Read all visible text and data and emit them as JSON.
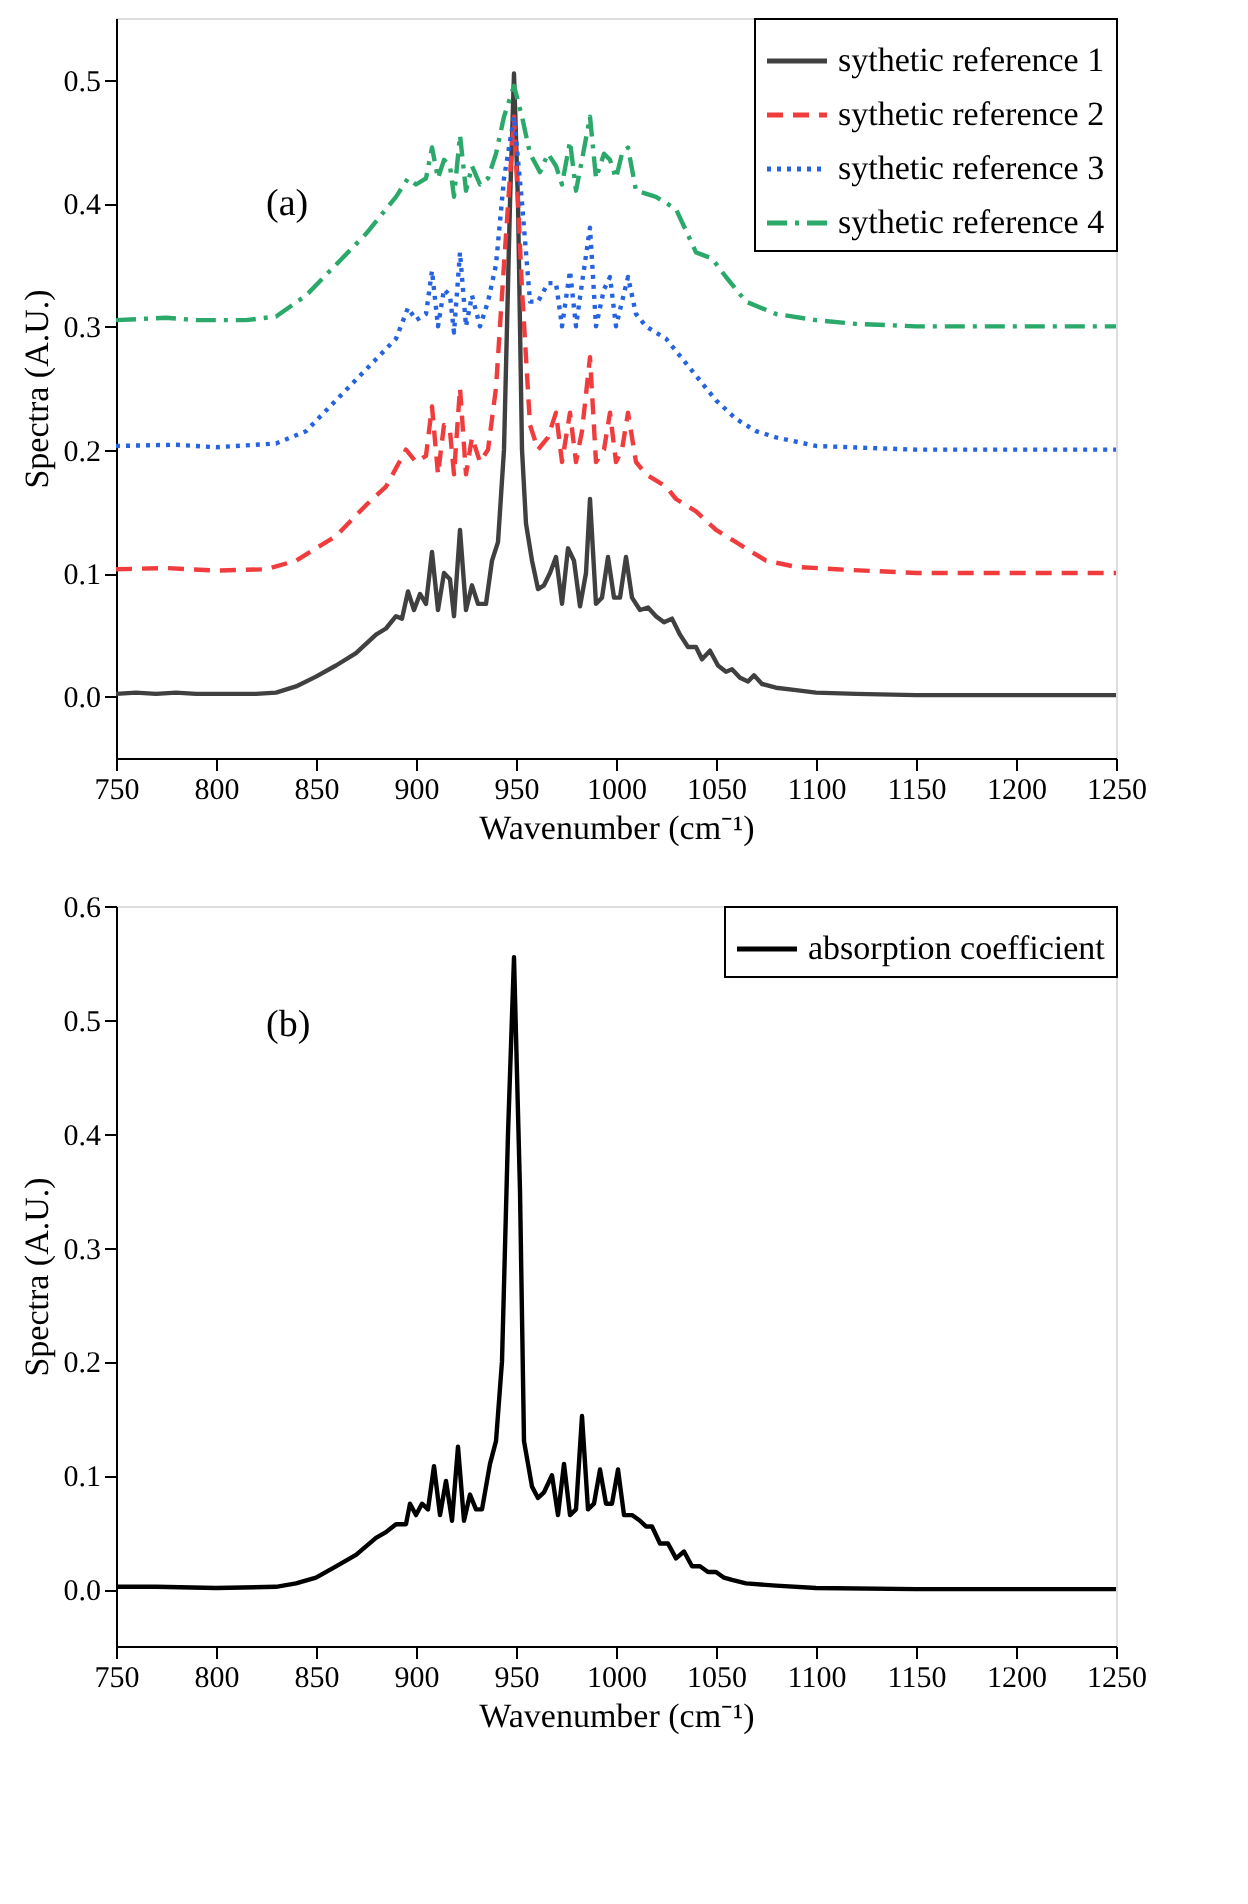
{
  "chart_data": [
    {
      "type": "line",
      "xlabel": "Wavenumber (cm⁻¹)",
      "ylabel": "Spectra (A.U.)",
      "annotations": [
        "(a)"
      ],
      "xlim": [
        750,
        1250
      ],
      "xticks": [
        750,
        800,
        850,
        900,
        950,
        1000,
        1050,
        1100,
        1150,
        1200,
        1250
      ],
      "ylim": [
        -0.05,
        0.55
      ],
      "yticks": [
        {
          "value": 0,
          "label": "0.0"
        },
        {
          "value": 0.1,
          "label": "0.1"
        },
        {
          "value": 0.2,
          "label": "0.2"
        },
        {
          "value": 0.3,
          "label": "0.3"
        },
        {
          "value": 0.4,
          "label": "0.4"
        },
        {
          "value": 0.5,
          "label": "0.5"
        }
      ],
      "grid": false,
      "legend": "top right",
      "marker": "none",
      "series": [
        {
          "name": "sythetic reference 1",
          "color": "#404040",
          "line_style": "solid",
          "x": [
            750,
            760,
            770,
            780,
            790,
            800,
            820,
            830,
            840,
            850,
            860,
            870,
            880,
            885,
            890,
            893,
            896,
            899,
            902,
            905,
            908,
            911,
            914,
            917,
            919,
            922,
            925,
            928,
            931,
            935,
            938,
            941,
            944,
            947,
            949,
            951,
            953,
            955,
            958,
            961,
            964,
            967,
            970,
            973,
            976,
            979,
            982,
            985,
            987,
            990,
            993,
            996,
            999,
            1002,
            1005,
            1008,
            1012,
            1016,
            1020,
            1024,
            1028,
            1032,
            1036,
            1040,
            1043,
            1047,
            1051,
            1055,
            1058,
            1062,
            1066,
            1069,
            1073,
            1080,
            1090,
            1100,
            1120,
            1150,
            1200,
            1250
          ],
          "values": [
            0.002,
            0.003,
            0.002,
            0.003,
            0.002,
            0.002,
            0.002,
            0.003,
            0.008,
            0.016,
            0.025,
            0.035,
            0.05,
            0.055,
            0.065,
            0.063,
            0.085,
            0.07,
            0.083,
            0.075,
            0.117,
            0.07,
            0.1,
            0.095,
            0.065,
            0.135,
            0.07,
            0.09,
            0.075,
            0.075,
            0.11,
            0.125,
            0.2,
            0.4,
            0.505,
            0.4,
            0.2,
            0.14,
            0.11,
            0.087,
            0.09,
            0.1,
            0.113,
            0.075,
            0.12,
            0.11,
            0.073,
            0.1,
            0.16,
            0.075,
            0.08,
            0.113,
            0.08,
            0.08,
            0.113,
            0.08,
            0.07,
            0.072,
            0.065,
            0.06,
            0.063,
            0.05,
            0.04,
            0.04,
            0.03,
            0.037,
            0.025,
            0.02,
            0.022,
            0.015,
            0.012,
            0.017,
            0.01,
            0.007,
            0.005,
            0.003,
            0.002,
            0.001,
            0.001,
            0.001
          ]
        },
        {
          "name": "sythetic reference 2",
          "color": "#f03c3c",
          "line_style": "dashed",
          "x": [
            750,
            775,
            800,
            825,
            840,
            860,
            875,
            885,
            895,
            900,
            905,
            908,
            911,
            914,
            917,
            919,
            922,
            925,
            928,
            932,
            936,
            940,
            944,
            949,
            953,
            957,
            961,
            966,
            970,
            973,
            977,
            980,
            983,
            987,
            990,
            994,
            997,
            1000,
            1003,
            1006,
            1010,
            1015,
            1025,
            1030,
            1040,
            1050,
            1060,
            1075,
            1090,
            1110,
            1150,
            1200,
            1250
          ],
          "values": [
            0.103,
            0.104,
            0.102,
            0.103,
            0.11,
            0.13,
            0.155,
            0.17,
            0.2,
            0.19,
            0.195,
            0.235,
            0.18,
            0.22,
            0.215,
            0.18,
            0.25,
            0.18,
            0.21,
            0.19,
            0.2,
            0.25,
            0.35,
            0.47,
            0.33,
            0.22,
            0.2,
            0.21,
            0.23,
            0.19,
            0.23,
            0.19,
            0.215,
            0.275,
            0.19,
            0.2,
            0.23,
            0.19,
            0.2,
            0.23,
            0.19,
            0.18,
            0.17,
            0.16,
            0.15,
            0.135,
            0.125,
            0.11,
            0.105,
            0.103,
            0.1,
            0.1,
            0.1
          ]
        },
        {
          "name": "sythetic reference 3",
          "color": "#2563e0",
          "line_style": "dotted",
          "x": [
            750,
            780,
            800,
            830,
            845,
            860,
            875,
            890,
            896,
            900,
            905,
            908,
            911,
            914,
            917,
            919,
            922,
            925,
            928,
            932,
            936,
            940,
            944,
            949,
            953,
            957,
            961,
            966,
            970,
            973,
            977,
            980,
            983,
            987,
            990,
            994,
            997,
            1000,
            1003,
            1006,
            1010,
            1015,
            1025,
            1030,
            1040,
            1050,
            1060,
            1070,
            1080,
            1100,
            1150,
            1200,
            1250
          ],
          "values": [
            0.203,
            0.204,
            0.202,
            0.205,
            0.215,
            0.24,
            0.265,
            0.29,
            0.315,
            0.305,
            0.31,
            0.345,
            0.3,
            0.33,
            0.325,
            0.295,
            0.36,
            0.3,
            0.325,
            0.3,
            0.32,
            0.35,
            0.42,
            0.47,
            0.4,
            0.32,
            0.32,
            0.335,
            0.335,
            0.3,
            0.345,
            0.3,
            0.335,
            0.38,
            0.3,
            0.33,
            0.34,
            0.3,
            0.32,
            0.34,
            0.31,
            0.3,
            0.29,
            0.28,
            0.26,
            0.24,
            0.225,
            0.215,
            0.21,
            0.203,
            0.2,
            0.2,
            0.2
          ]
        },
        {
          "name": "sythetic reference 4",
          "color": "#2aa96b",
          "line_style": "dashdot",
          "x": [
            750,
            775,
            790,
            815,
            830,
            845,
            860,
            875,
            890,
            896,
            900,
            905,
            908,
            911,
            914,
            917,
            919,
            922,
            925,
            928,
            932,
            936,
            940,
            944,
            949,
            953,
            957,
            962,
            966,
            970,
            973,
            977,
            980,
            983,
            987,
            990,
            994,
            997,
            1000,
            1003,
            1006,
            1010,
            1020,
            1030,
            1040,
            1048,
            1055,
            1065,
            1080,
            1100,
            1120,
            1150,
            1200,
            1250
          ],
          "values": [
            0.305,
            0.307,
            0.305,
            0.305,
            0.308,
            0.325,
            0.35,
            0.375,
            0.405,
            0.42,
            0.415,
            0.42,
            0.445,
            0.42,
            0.435,
            0.43,
            0.405,
            0.455,
            0.41,
            0.43,
            0.415,
            0.42,
            0.44,
            0.47,
            0.495,
            0.47,
            0.44,
            0.425,
            0.44,
            0.43,
            0.415,
            0.45,
            0.41,
            0.435,
            0.47,
            0.42,
            0.44,
            0.435,
            0.42,
            0.44,
            0.445,
            0.41,
            0.405,
            0.395,
            0.36,
            0.355,
            0.34,
            0.32,
            0.31,
            0.305,
            0.302,
            0.3,
            0.3,
            0.3
          ]
        }
      ]
    },
    {
      "type": "line",
      "xlabel": "Wavenumber (cm⁻¹)",
      "ylabel": "Spectra (A.U.)",
      "annotations": [
        "(b)"
      ],
      "xlim": [
        750,
        1250
      ],
      "xticks": [
        750,
        800,
        850,
        900,
        950,
        1000,
        1050,
        1100,
        1150,
        1200,
        1250
      ],
      "ylim": [
        -0.05,
        0.6
      ],
      "yticks": [
        {
          "value": 0,
          "label": "0.0"
        },
        {
          "value": 0.1,
          "label": "0.1"
        },
        {
          "value": 0.2,
          "label": "0.2"
        },
        {
          "value": 0.3,
          "label": "0.3"
        },
        {
          "value": 0.4,
          "label": "0.4"
        },
        {
          "value": 0.5,
          "label": "0.5"
        },
        {
          "value": 0.6,
          "label": "0.6"
        }
      ],
      "grid": false,
      "legend": "top right",
      "marker": "none",
      "series": [
        {
          "name": "absorption coefficient",
          "color": "#000000",
          "line_style": "solid",
          "x": [
            750,
            770,
            800,
            830,
            840,
            850,
            860,
            870,
            880,
            885,
            890,
            895,
            897,
            900,
            903,
            906,
            909,
            912,
            915,
            918,
            921,
            924,
            927,
            930,
            933,
            937,
            940,
            943,
            946,
            949,
            952,
            954,
            958,
            961,
            964,
            968,
            971,
            974,
            977,
            980,
            983,
            986,
            989,
            992,
            995,
            998,
            1001,
            1004,
            1008,
            1012,
            1015,
            1018,
            1022,
            1026,
            1030,
            1034,
            1038,
            1042,
            1046,
            1050,
            1054,
            1058,
            1065,
            1080,
            1100,
            1150,
            1250
          ],
          "values": [
            0.002,
            0.002,
            0.001,
            0.002,
            0.005,
            0.01,
            0.02,
            0.03,
            0.045,
            0.05,
            0.057,
            0.057,
            0.075,
            0.065,
            0.075,
            0.07,
            0.108,
            0.065,
            0.095,
            0.06,
            0.125,
            0.06,
            0.083,
            0.07,
            0.07,
            0.11,
            0.13,
            0.2,
            0.4,
            0.555,
            0.35,
            0.13,
            0.09,
            0.08,
            0.085,
            0.1,
            0.065,
            0.11,
            0.065,
            0.07,
            0.152,
            0.07,
            0.075,
            0.105,
            0.075,
            0.075,
            0.105,
            0.065,
            0.065,
            0.06,
            0.055,
            0.055,
            0.04,
            0.04,
            0.027,
            0.033,
            0.02,
            0.02,
            0.015,
            0.015,
            0.01,
            0.008,
            0.005,
            0.003,
            0.001,
            0.0,
            0.0
          ]
        }
      ]
    }
  ]
}
